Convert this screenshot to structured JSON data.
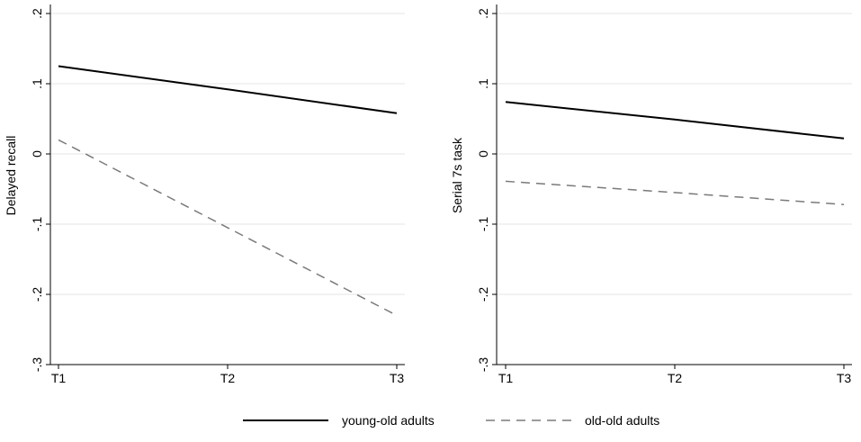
{
  "chart_data": [
    {
      "type": "line",
      "categories": [
        "T1",
        "T2",
        "T3"
      ],
      "x": [
        1,
        2,
        3
      ],
      "ylabel": "Delayed recall",
      "xlabel": "",
      "ylim": [
        -0.3,
        0.2
      ],
      "yticks": [
        0.2,
        0.1,
        0,
        -0.1,
        -0.2,
        -0.3
      ],
      "ytick_labels": [
        ".2",
        ".1",
        "0",
        "-.1",
        "-.2",
        "-.3"
      ],
      "grid": true,
      "series": [
        {
          "name": "young-old adults",
          "values": [
            0.125,
            0.092,
            0.058
          ]
        },
        {
          "name": "old-old adults",
          "values": [
            0.02,
            -0.105,
            -0.23
          ]
        }
      ]
    },
    {
      "type": "line",
      "categories": [
        "T1",
        "T2",
        "T3"
      ],
      "x": [
        1,
        2,
        3
      ],
      "ylabel": "Serial 7s task",
      "xlabel": "",
      "ylim": [
        -0.3,
        0.2
      ],
      "yticks": [
        0.2,
        0.1,
        0,
        -0.1,
        -0.2,
        -0.3
      ],
      "ytick_labels": [
        ".2",
        ".1",
        "0",
        "-.1",
        "-.2",
        "-.3"
      ],
      "grid": true,
      "series": [
        {
          "name": "young-old adults",
          "values": [
            0.074,
            0.049,
            0.022
          ]
        },
        {
          "name": "old-old adults",
          "values": [
            -0.039,
            -0.055,
            -0.072
          ]
        }
      ]
    }
  ],
  "legend": {
    "position": "bottom",
    "items": [
      {
        "label": "young-old adults",
        "style": "solid",
        "color": "#000000"
      },
      {
        "label": "old-old adults",
        "style": "dashed",
        "color": "#7a7a7a"
      }
    ]
  },
  "colors": {
    "grid": "#e6e6e6",
    "axis": "#000000",
    "young": "#000000",
    "old": "#7a7a7a"
  }
}
